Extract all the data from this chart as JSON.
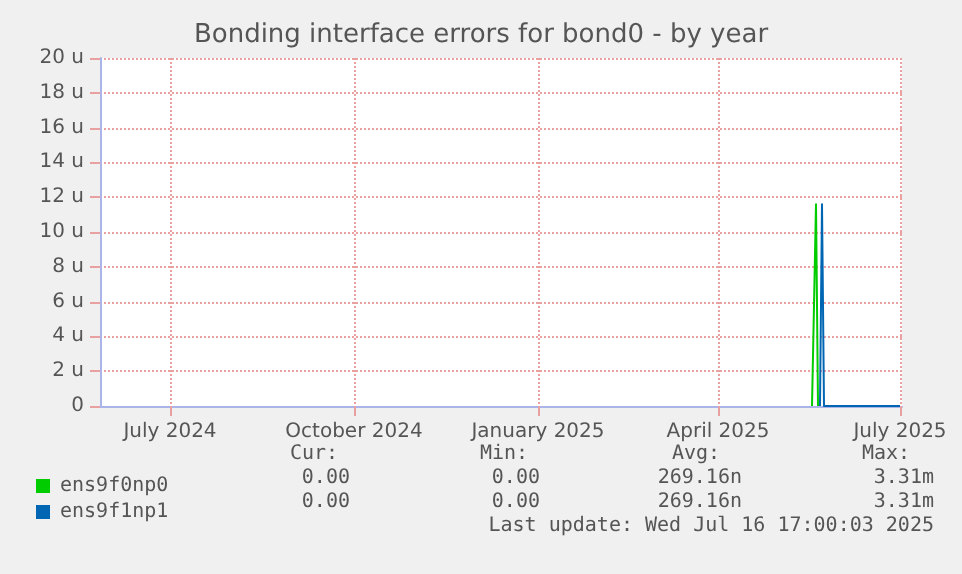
{
  "chart_data": {
    "type": "line",
    "title": "Bonding interface errors for bond0 - by year",
    "xlim": [
      "2024-05-27",
      "2025-07-02"
    ],
    "xticks": [
      {
        "value": "2024-07-01",
        "label": "July 2024"
      },
      {
        "value": "2024-10-01",
        "label": "October 2024"
      },
      {
        "value": "2025-01-01",
        "label": "January 2025"
      },
      {
        "value": "2025-04-01",
        "label": "April 2025"
      },
      {
        "value": "2025-07-01",
        "label": "July 2025"
      }
    ],
    "ylim": [
      0,
      20
    ],
    "yticks": [
      0,
      {
        "value": 2,
        "label": "2 u"
      },
      {
        "value": 4,
        "label": "4 u"
      },
      {
        "value": 6,
        "label": "6 u"
      },
      {
        "value": 8,
        "label": "8 u"
      },
      {
        "value": 10,
        "label": "10 u"
      },
      {
        "value": 12,
        "label": "12 u"
      },
      {
        "value": 14,
        "label": "14 u"
      },
      {
        "value": 16,
        "label": "16 u"
      },
      {
        "value": 18,
        "label": "18 u"
      },
      {
        "value": 20,
        "label": "20 u"
      }
    ],
    "series": [
      {
        "name": "ens9f0np0",
        "color": "#00cc00",
        "x": [
          "2025-05-18",
          "2025-05-20",
          "2025-05-21"
        ],
        "values": [
          0,
          11.6,
          0
        ]
      },
      {
        "name": "ens9f1np1",
        "color": "#0066b3",
        "x": [
          "2025-05-22",
          "2025-05-23",
          "2025-05-24",
          "2025-07-01"
        ],
        "values": [
          0,
          11.6,
          0,
          0
        ]
      }
    ],
    "annotations": [
      "Cur:",
      "Min:",
      "Avg:",
      "Max:",
      "0.00",
      "0.00",
      "269.16n",
      "3.31m",
      "0.00",
      "0.00",
      "269.16n",
      "3.31m",
      "Last update: Wed Jul 16 17:00:03 2025"
    ],
    "grid": true,
    "legend": "bottom left",
    "marker": "none",
    "line_style": "solid"
  }
}
